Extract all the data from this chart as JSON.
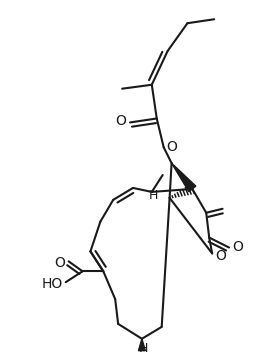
{
  "figsize": [
    2.65,
    3.61
  ],
  "dpi": 100,
  "xlim": [
    0,
    265
  ],
  "ylim": [
    0,
    361
  ],
  "bg": "#ffffff",
  "lc": "#1a1a1a",
  "lw": 1.5
}
